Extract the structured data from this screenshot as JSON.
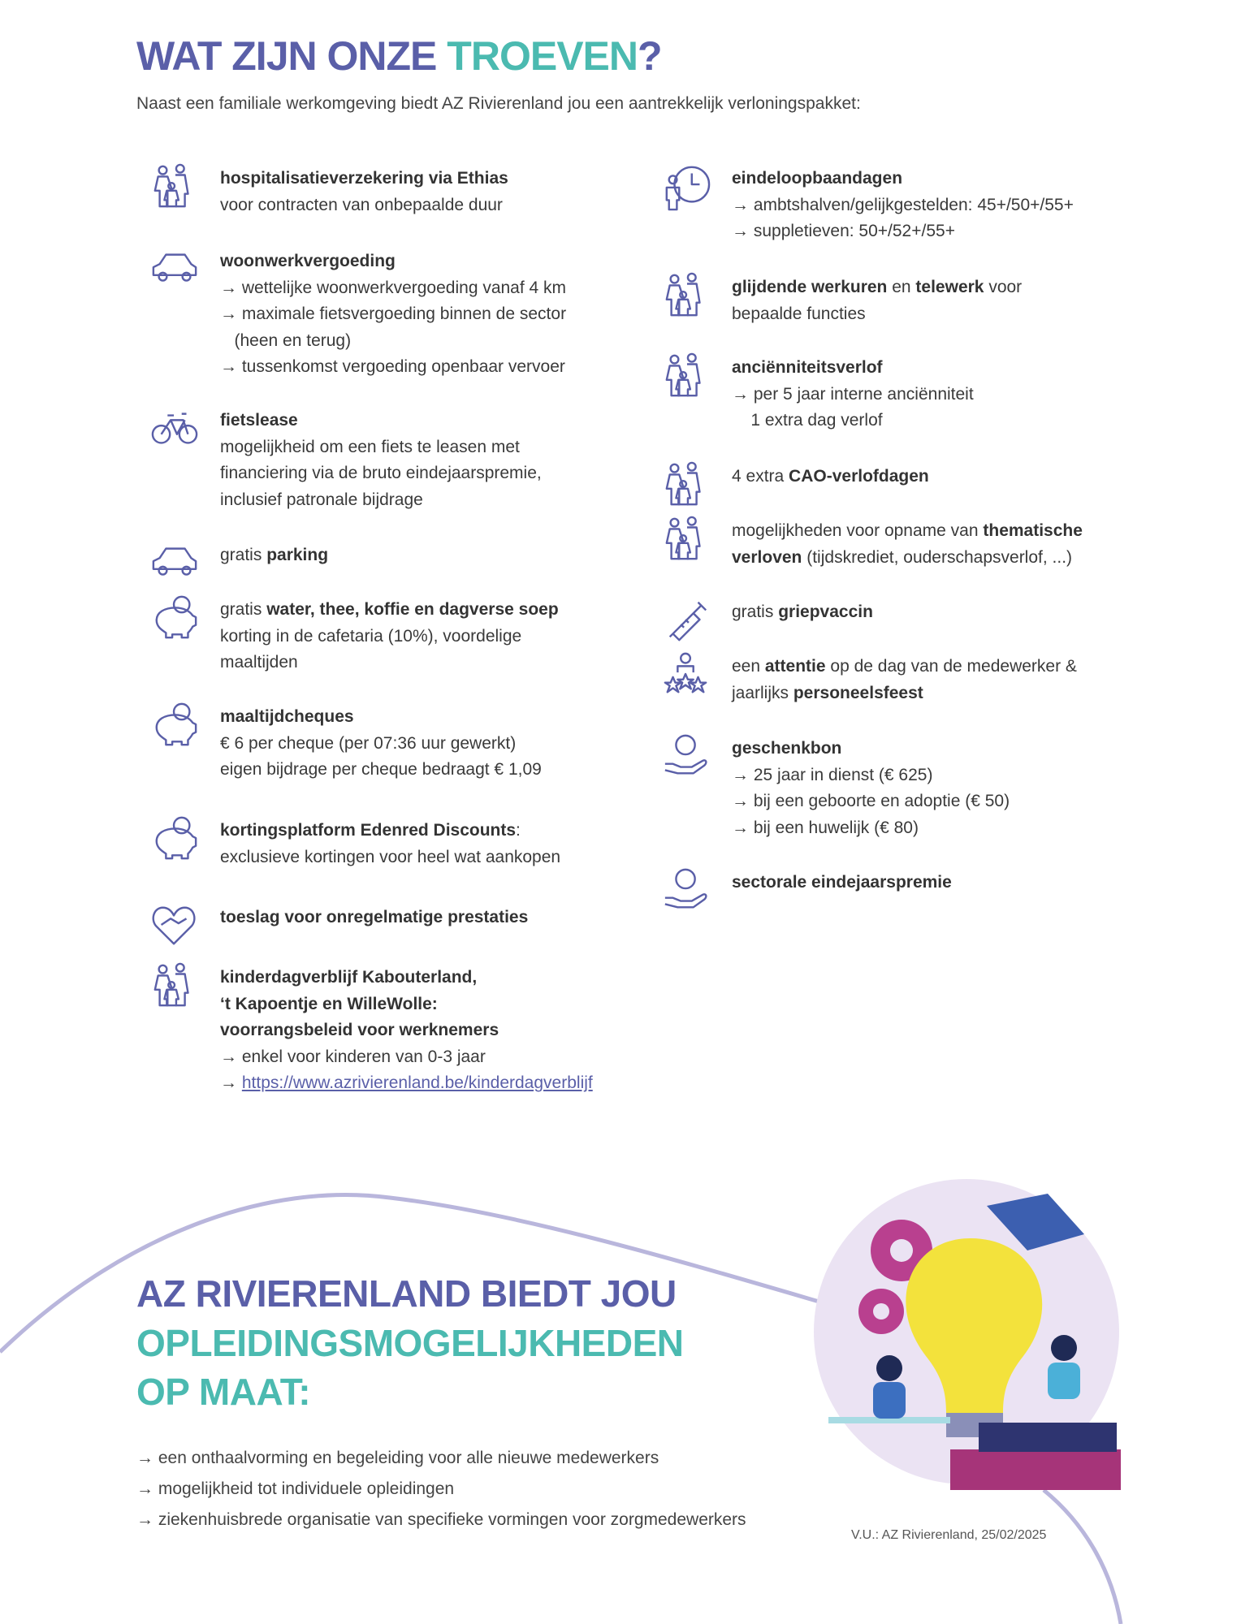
{
  "title": {
    "part1": "WAT ZIJN ONZE ",
    "part2": "TROEVEN",
    "part3": "?"
  },
  "intro": "Naast een familiale werkomgeving biedt AZ Rivierenland jou een aantrekkelijk verloningspakket:",
  "colors": {
    "purple": "#5a5fa8",
    "teal": "#4bbab0",
    "text": "#3a3a3a"
  },
  "left_items": [
    {
      "icon": "family-icon",
      "lines": [
        [
          {
            "t": "hospitalisatieverzekering via Ethias",
            "b": true
          }
        ],
        [
          {
            "t": "voor contracten van onbepaalde duur"
          }
        ]
      ]
    },
    {
      "icon": "car-icon",
      "lines": [
        [
          {
            "t": "woonwerkvergoeding",
            "b": true
          }
        ],
        [
          {
            "t": "→ wettelijke woonwerkvergoeding vanaf 4 km"
          }
        ],
        [
          {
            "t": "→ maximale fietsvergoeding binnen de sector"
          }
        ],
        [
          {
            "t": "   (heen en terug)"
          }
        ],
        [
          {
            "t": "→ tussenkomst vergoeding openbaar vervoer"
          }
        ]
      ]
    },
    {
      "icon": "bicycle-icon",
      "lines": [
        [
          {
            "t": "fietslease",
            "b": true
          }
        ],
        [
          {
            "t": "mogelijkheid om een fiets te leasen met"
          }
        ],
        [
          {
            "t": "financiering via de bruto eindejaarspremie,"
          }
        ],
        [
          {
            "t": "inclusief patronale bijdrage"
          }
        ]
      ]
    },
    {
      "icon": "car-icon",
      "lines": [
        [
          {
            "t": "gratis "
          },
          {
            "t": "parking",
            "b": true
          }
        ]
      ]
    },
    {
      "icon": "piggy-bank-euro-icon",
      "lines": [
        [
          {
            "t": "gratis "
          },
          {
            "t": "water, thee, koffie en dagverse soep",
            "b": true
          }
        ],
        [
          {
            "t": "korting in de cafetaria (10%), voordelige"
          }
        ],
        [
          {
            "t": "maaltijden"
          }
        ]
      ]
    },
    {
      "icon": "piggy-bank-euro-icon",
      "lines": [
        [
          {
            "t": "maaltijdcheques",
            "b": true
          }
        ],
        [
          {
            "t": "€ 6 per cheque (per 07:36 uur gewerkt)"
          }
        ],
        [
          {
            "t": "eigen bijdrage per cheque bedraagt € 1,09"
          }
        ]
      ]
    },
    {
      "icon": "piggy-bank-euro-icon",
      "lines": [
        [
          {
            "t": "kortingsplatform Edenred Discounts",
            "b": true
          },
          {
            "t": ":"
          }
        ],
        [
          {
            "t": "exclusieve kortingen voor heel wat aankopen"
          }
        ]
      ]
    },
    {
      "icon": "handshake-heart-icon",
      "lines": [
        [
          {
            "t": "toeslag voor onregelmatige prestaties",
            "b": true
          }
        ]
      ]
    },
    {
      "icon": "family-icon",
      "lines": [
        [
          {
            "t": "kinderdagverblijf Kabouterland,",
            "b": true
          }
        ],
        [
          {
            "t": "‘t Kapoentje en WilleWolle:",
            "b": true
          }
        ],
        [
          {
            "t": "voorrangsbeleid voor werknemers",
            "b": true
          }
        ],
        [
          {
            "t": "→ enkel voor kinderen van 0-3 jaar"
          }
        ],
        [
          {
            "t": "→ "
          },
          {
            "t": "https://www.azrivierenland.be/kinderdagverblijf",
            "link": true
          }
        ]
      ]
    }
  ],
  "right_items": [
    {
      "icon": "person-clock-icon",
      "lines": [
        [
          {
            "t": "eindeloopbaandagen",
            "b": true
          }
        ],
        [
          {
            "t": "→ ambtshalven/gelijkgestelden: 45+/50+/55+"
          }
        ],
        [
          {
            "t": "→ suppletieven: 50+/52+/55+"
          }
        ]
      ]
    },
    {
      "icon": "family-icon",
      "lines": [
        [
          {
            "t": "glijdende werkuren",
            "b": true
          },
          {
            "t": " en "
          },
          {
            "t": "telewerk",
            "b": true
          },
          {
            "t": " voor"
          }
        ],
        [
          {
            "t": "bepaalde functies"
          }
        ]
      ]
    },
    {
      "icon": "family-icon",
      "lines": [
        [
          {
            "t": "anciënniteitsverlof",
            "b": true
          }
        ],
        [
          {
            "t": "→ per 5 jaar interne anciënniteit"
          }
        ],
        [
          {
            "t": "    1 extra dag verlof"
          }
        ]
      ]
    },
    {
      "icon": "family-icon",
      "lines": [
        [
          {
            "t": "4 extra "
          },
          {
            "t": "CAO-verlofdagen",
            "b": true
          }
        ]
      ]
    },
    {
      "icon": "family-icon",
      "lines": [
        [
          {
            "t": "mogelijkheden voor opname van "
          },
          {
            "t": "thematische",
            "b": true
          }
        ],
        [
          {
            "t": "verloven",
            "b": true
          },
          {
            "t": " (tijdskrediet, ouderschapsverlof, ...)"
          }
        ]
      ]
    },
    {
      "icon": "syringe-icon",
      "lines": [
        [
          {
            "t": "gratis "
          },
          {
            "t": "griepvaccin",
            "b": true
          }
        ]
      ]
    },
    {
      "icon": "person-stars-icon",
      "lines": [
        [
          {
            "t": "een "
          },
          {
            "t": "attentie",
            "b": true
          },
          {
            "t": " op de dag van de medewerker &"
          }
        ],
        [
          {
            "t": "jaarlijks "
          },
          {
            "t": "personeelsfeest",
            "b": true
          }
        ]
      ]
    },
    {
      "icon": "hand-euro-coin-icon",
      "lines": [
        [
          {
            "t": "geschenkbon",
            "b": true
          }
        ],
        [
          {
            "t": "→ 25 jaar in dienst (€ 625)"
          }
        ],
        [
          {
            "t": "→ bij een geboorte en adoptie (€ 50)"
          }
        ],
        [
          {
            "t": "→ bij een huwelijk (€ 80)"
          }
        ]
      ]
    },
    {
      "icon": "hand-coin-icon",
      "lines": [
        [
          {
            "t": "sectorale eindejaarspremie",
            "b": true
          }
        ]
      ]
    }
  ],
  "training": {
    "heading": [
      "AZ RIVIERENLAND BIEDT JOU",
      "OPLEIDINGSMOGELIJKHEDEN",
      "OP MAAT:"
    ],
    "bullets": [
      "→ een onthaalvorming en begeleiding voor alle nieuwe medewerkers",
      "→ mogelijkheid tot individuele opleidingen",
      "→ ziekenhuisbrede organisatie van specifieke vormingen voor zorgmedewerkers"
    ]
  },
  "footer": {
    "vu": "V.U.: AZ Rivierenland, 25/02/2025"
  }
}
